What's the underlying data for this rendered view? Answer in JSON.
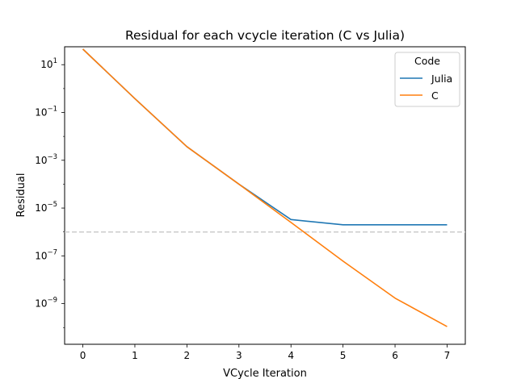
{
  "chart_data": {
    "type": "line",
    "title": "Residual for each vcycle iteration (C vs Julia)",
    "xlabel": "VCycle Iteration",
    "ylabel": "Residual",
    "yscale": "log",
    "xlim": [
      -0.35,
      7.35
    ],
    "ylim_log10": [
      -10.7,
      1.75
    ],
    "xticks": [
      0,
      1,
      2,
      3,
      4,
      5,
      6,
      7
    ],
    "yticks": [
      {
        "base": "10",
        "exp": "1",
        "log10": 1
      },
      {
        "base": "10",
        "exp": "−1",
        "log10": -1
      },
      {
        "base": "10",
        "exp": "−3",
        "log10": -3
      },
      {
        "base": "10",
        "exp": "−5",
        "log10": -5
      },
      {
        "base": "10",
        "exp": "−7",
        "log10": -7
      },
      {
        "base": "10",
        "exp": "−9",
        "log10": -9
      }
    ],
    "legend": {
      "title": "Code",
      "placement": "top-right"
    },
    "threshold": {
      "y": 1e-06,
      "style": "dashed",
      "color": "#cccccc"
    },
    "series": [
      {
        "name": "Julia",
        "color": "#1f77b4",
        "x": [
          0,
          1,
          2,
          3,
          4,
          5,
          6,
          7
        ],
        "y": [
          45,
          0.38,
          0.0037,
          0.0001,
          3.3e-06,
          2e-06,
          2e-06,
          2e-06
        ]
      },
      {
        "name": "C",
        "color": "#ff7f0e",
        "x": [
          0,
          1,
          2,
          3,
          4,
          5,
          6,
          7
        ],
        "y": [
          45,
          0.38,
          0.0037,
          0.0001,
          2.5e-06,
          6e-08,
          1.7e-09,
          1.1e-10
        ]
      }
    ]
  }
}
